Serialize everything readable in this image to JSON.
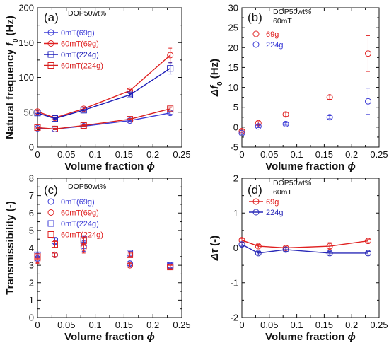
{
  "chart_data": [
    {
      "id": "a",
      "type": "line",
      "panel_tag": "(a)",
      "notes": [
        "DOP50wt%"
      ],
      "xlabel": "Volume fraction",
      "xsym": "ϕ",
      "ylabel_main": "Natural frequency ",
      "ylabel_var": "f",
      "ylabel_sub": "0",
      "ylabel_unit": " (Hz)",
      "xlim": [
        0,
        0.25
      ],
      "ylim": [
        0,
        200
      ],
      "xticks": [
        "0",
        "0.05",
        "0.1",
        "0.15",
        "0.2",
        "0.25"
      ],
      "yticks": [
        "0",
        "50",
        "100",
        "150",
        "200"
      ],
      "legend_placement": "upper-left",
      "series": [
        {
          "name": "0mT(69g)",
          "color": "#3b3bd6",
          "marker": "circle",
          "line": true,
          "x": [
            0,
            0.03,
            0.08,
            0.16,
            0.23
          ],
          "y": [
            27,
            26,
            30,
            38,
            49
          ],
          "err": [
            1,
            1,
            1,
            1,
            2
          ]
        },
        {
          "name": "60mT(69g)",
          "color": "#e02020",
          "marker": "circle",
          "line": true,
          "x": [
            0,
            0.03,
            0.08,
            0.16,
            0.23
          ],
          "y": [
            51,
            42,
            55,
            81,
            132
          ],
          "err": [
            1,
            1,
            2,
            2,
            10
          ]
        },
        {
          "name": "0mT(224g)",
          "color": "#1a1ab8",
          "marker": "square",
          "line": true,
          "x": [
            0,
            0.03,
            0.08,
            0.16,
            0.23
          ],
          "y": [
            49,
            41,
            53,
            75,
            113
          ],
          "err": [
            1,
            1,
            1,
            2,
            8
          ]
        },
        {
          "name": "60mT(224g)",
          "color": "#d82020",
          "marker": "square",
          "line": true,
          "x": [
            0,
            0.03,
            0.08,
            0.16,
            0.23
          ],
          "y": [
            28,
            26,
            31,
            40,
            55
          ],
          "err": [
            1,
            1,
            1,
            1,
            2
          ]
        }
      ]
    },
    {
      "id": "b",
      "type": "scatter",
      "panel_tag": "(b)",
      "notes": [
        "DOP50wt%",
        "60mT"
      ],
      "xlabel": "Volume fraction",
      "xsym": "ϕ",
      "ylabel_main": "",
      "ylabel_var": "Δf",
      "ylabel_sub": "0",
      "ylabel_unit": " (Hz)",
      "xlim": [
        0,
        0.25
      ],
      "ylim": [
        -5,
        30
      ],
      "xticks": [
        "0",
        "0.05",
        "0.1",
        "0.15",
        "0.2",
        "0.25"
      ],
      "yticks": [
        "-5",
        "0",
        "5",
        "10",
        "15",
        "20",
        "25",
        "30"
      ],
      "legend_placement": "upper-left",
      "series": [
        {
          "name": "69g",
          "color": "#e02020",
          "marker": "circle",
          "line": false,
          "x": [
            0,
            0.03,
            0.08,
            0.16,
            0.23
          ],
          "y": [
            -1.0,
            1.0,
            3.2,
            7.5,
            18.5
          ],
          "err": [
            0.3,
            0.4,
            0.5,
            0.5,
            4.5
          ]
        },
        {
          "name": "224g",
          "color": "#3b3bd6",
          "marker": "circle",
          "line": false,
          "x": [
            0,
            0.03,
            0.08,
            0.16,
            0.23
          ],
          "y": [
            -1.5,
            0.2,
            0.8,
            2.5,
            6.5
          ],
          "err": [
            0.3,
            0.3,
            0.3,
            0.4,
            3.3
          ]
        }
      ]
    },
    {
      "id": "c",
      "type": "scatter",
      "panel_tag": "(c)",
      "notes": [
        "DOP50wt%"
      ],
      "xlabel": "Volume fraction",
      "xsym": "ϕ",
      "ylabel_main": "Transmissibility (-)",
      "ylabel_var": "",
      "ylabel_sub": "",
      "ylabel_unit": "",
      "xlim": [
        0,
        0.25
      ],
      "ylim": [
        0,
        8
      ],
      "xticks": [
        "0",
        "0.05",
        "0.1",
        "0.15",
        "0.2",
        "0.25"
      ],
      "yticks": [
        "0",
        "1",
        "2",
        "3",
        "4",
        "5",
        "6",
        "7",
        "8"
      ],
      "legend_placement": "upper-left",
      "series": [
        {
          "name": "0mT(69g)",
          "color": "#3b3bd6",
          "marker": "circle",
          "line": false,
          "x": [
            0,
            0.03,
            0.08,
            0.16,
            0.23
          ],
          "y": [
            3.4,
            3.6,
            4.1,
            3.1,
            3.0
          ],
          "err": [
            0.2,
            0.1,
            0.3,
            0.1,
            0.1
          ]
        },
        {
          "name": "60mT(69g)",
          "color": "#e02020",
          "marker": "circle",
          "line": false,
          "x": [
            0,
            0.03,
            0.08,
            0.16,
            0.23
          ],
          "y": [
            3.3,
            3.6,
            4.0,
            3.0,
            2.9
          ],
          "err": [
            0.2,
            0.1,
            0.3,
            0.1,
            0.1
          ]
        },
        {
          "name": "0mT(224g)",
          "color": "#3b3bd6",
          "marker": "square",
          "line": false,
          "x": [
            0,
            0.03,
            0.08,
            0.16,
            0.23
          ],
          "y": [
            3.6,
            4.4,
            4.5,
            3.7,
            3.0
          ],
          "err": [
            0.1,
            0.2,
            0.2,
            0.1,
            0.1
          ]
        },
        {
          "name": "60mT(224g)",
          "color": "#e02020",
          "marker": "square",
          "line": false,
          "x": [
            0,
            0.03,
            0.08,
            0.16,
            0.23
          ],
          "y": [
            3.5,
            4.2,
            4.4,
            3.6,
            2.9
          ],
          "err": [
            0.1,
            0.2,
            0.2,
            0.1,
            0.1
          ]
        }
      ]
    },
    {
      "id": "d",
      "type": "line",
      "panel_tag": "(d)",
      "notes": [
        "DOP50wt%",
        "60mT"
      ],
      "xlabel": "Volume fraction",
      "xsym": "ϕ",
      "ylabel_main": "",
      "ylabel_var": "Δτ",
      "ylabel_sub": "",
      "ylabel_unit": " (-)",
      "xlim": [
        0,
        0.25
      ],
      "ylim": [
        -2,
        2
      ],
      "xticks": [
        "0",
        "0.05",
        "0.1",
        "0.15",
        "0.2",
        "0.25"
      ],
      "yticks": [
        "-2",
        "-1",
        "0",
        "1",
        "2"
      ],
      "legend_placement": "upper-left",
      "series": [
        {
          "name": "69g",
          "color": "#e02020",
          "marker": "circle",
          "line": true,
          "x": [
            0,
            0.03,
            0.08,
            0.16,
            0.23
          ],
          "y": [
            0.22,
            0.05,
            0.0,
            0.05,
            0.2
          ],
          "err": [
            0.05,
            0.05,
            0.05,
            0.1,
            0.05
          ]
        },
        {
          "name": "224g",
          "color": "#2a2ab8",
          "marker": "circle",
          "line": true,
          "x": [
            0,
            0.03,
            0.08,
            0.16,
            0.23
          ],
          "y": [
            0.1,
            -0.15,
            -0.05,
            -0.15,
            -0.15
          ],
          "err": [
            0.05,
            0.05,
            0.05,
            0.05,
            0.05
          ]
        }
      ]
    }
  ]
}
